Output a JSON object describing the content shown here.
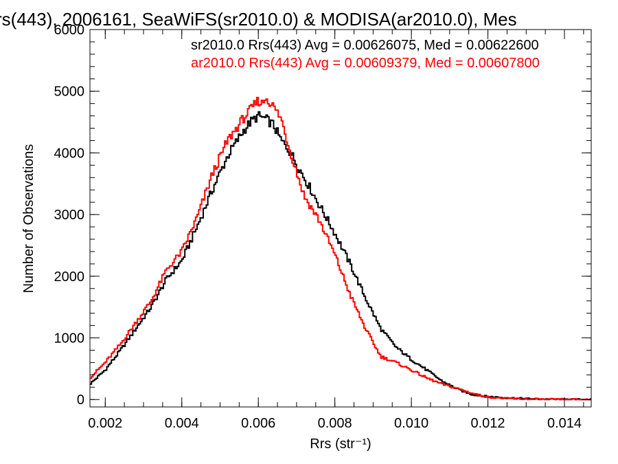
{
  "chart_data": {
    "type": "line",
    "step": true,
    "title": "rs(443), 2006161, SeaWiFS(sr2010.0) & MODISA(ar2010.0), Mes",
    "xlabel": "Rrs (str⁻¹)",
    "ylabel": "Number of Observations",
    "xlim": [
      0.0016,
      0.0147
    ],
    "ylim": [
      -120,
      6000
    ],
    "x_ticks": [
      0.002,
      0.004,
      0.006,
      0.008,
      0.01,
      0.012,
      0.014
    ],
    "x_tick_labels": [
      "0.002",
      "0.004",
      "0.006",
      "0.008",
      "0.010",
      "0.012",
      "0.014"
    ],
    "y_ticks": [
      0,
      1000,
      2000,
      3000,
      4000,
      5000,
      6000
    ],
    "y_tick_labels": [
      "0",
      "1000",
      "2000",
      "3000",
      "4000",
      "5000",
      "6000"
    ],
    "x_minor_step": 0.0005,
    "y_minor_step": 200,
    "grid": false,
    "legend_position": "top-right",
    "annotations": [
      {
        "text": "sr2010.0 Rrs(443) Avg = 0.00626075, Med = 0.00622600",
        "color": "#000000"
      },
      {
        "text": "ar2010.0 Rrs(443) Avg = 0.00609379, Med = 0.00607800",
        "color": "#ff0000"
      }
    ],
    "series": [
      {
        "name": "sr2010.0",
        "color": "#000000",
        "x": [
          0.0016,
          0.002,
          0.0024,
          0.0028,
          0.0032,
          0.0036,
          0.004,
          0.0044,
          0.0048,
          0.0052,
          0.0056,
          0.0058,
          0.006,
          0.0062,
          0.0064,
          0.0066,
          0.0068,
          0.0072,
          0.0076,
          0.008,
          0.0084,
          0.0088,
          0.0092,
          0.0096,
          0.01,
          0.0104,
          0.0108,
          0.0112,
          0.0116,
          0.012,
          0.0124,
          0.0128,
          0.0132,
          0.0136,
          0.014,
          0.0147
        ],
        "y": [
          250,
          480,
          800,
          1150,
          1500,
          1950,
          2250,
          2800,
          3400,
          3950,
          4350,
          4500,
          4600,
          4550,
          4450,
          4200,
          4050,
          3600,
          3150,
          2700,
          2200,
          1650,
          1150,
          850,
          650,
          480,
          300,
          170,
          80,
          50,
          30,
          20,
          10,
          6,
          3,
          0
        ]
      },
      {
        "name": "ar2010.0",
        "color": "#ff0000",
        "x": [
          0.0016,
          0.002,
          0.0024,
          0.0028,
          0.0032,
          0.0036,
          0.004,
          0.0044,
          0.0048,
          0.0052,
          0.0056,
          0.0058,
          0.006,
          0.0061,
          0.0062,
          0.0064,
          0.0066,
          0.0068,
          0.0072,
          0.0076,
          0.008,
          0.0084,
          0.0088,
          0.0092,
          0.0096,
          0.01,
          0.0104,
          0.0108,
          0.0112,
          0.0116,
          0.012,
          0.0124,
          0.0128,
          0.0132,
          0.0136,
          0.014,
          0.0147
        ],
        "y": [
          350,
          600,
          900,
          1250,
          1600,
          2100,
          2400,
          2950,
          3650,
          4200,
          4550,
          4700,
          4850,
          4800,
          4900,
          4750,
          4550,
          4100,
          3300,
          2900,
          2350,
          1700,
          1150,
          700,
          600,
          480,
          350,
          250,
          180,
          100,
          40,
          20,
          10,
          5,
          2,
          1,
          0
        ]
      }
    ]
  }
}
